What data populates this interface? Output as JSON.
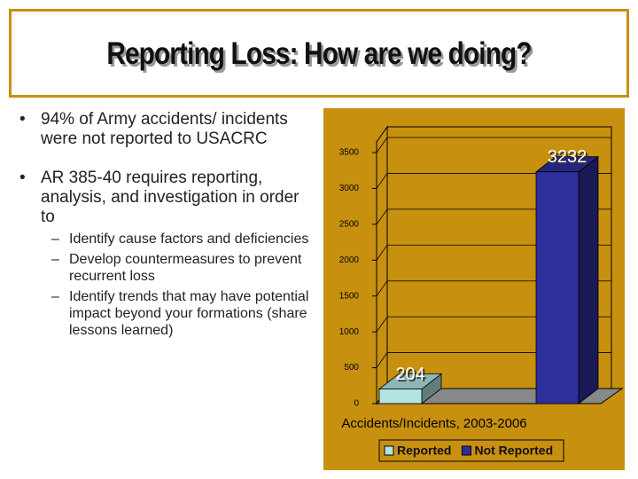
{
  "title": "Reporting Loss: How are we doing?",
  "bullets": [
    "94% of Army accidents/ incidents were not reported to USACRC",
    "AR 385-40 requires reporting, analysis, and investigation in order to"
  ],
  "sub_bullets": [
    "Identify cause factors and deficiencies",
    "Develop countermeasures to prevent recurrent loss",
    "Identify trends that may have potential impact beyond your formations (share lessons learned)"
  ],
  "chart_data": {
    "type": "bar",
    "categories": [
      "Accidents/Incidents, 2003-2006"
    ],
    "series": [
      {
        "name": "Reported",
        "color": "#b3e3e3",
        "values": [
          204
        ]
      },
      {
        "name": "Not Reported",
        "color": "#2e2e9c",
        "values": [
          3232
        ]
      }
    ],
    "ylim": [
      0,
      3500
    ],
    "yticks": [
      0,
      500,
      1000,
      1500,
      2000,
      2500,
      3000,
      3500
    ],
    "background": "#c8900f",
    "grid": true
  }
}
